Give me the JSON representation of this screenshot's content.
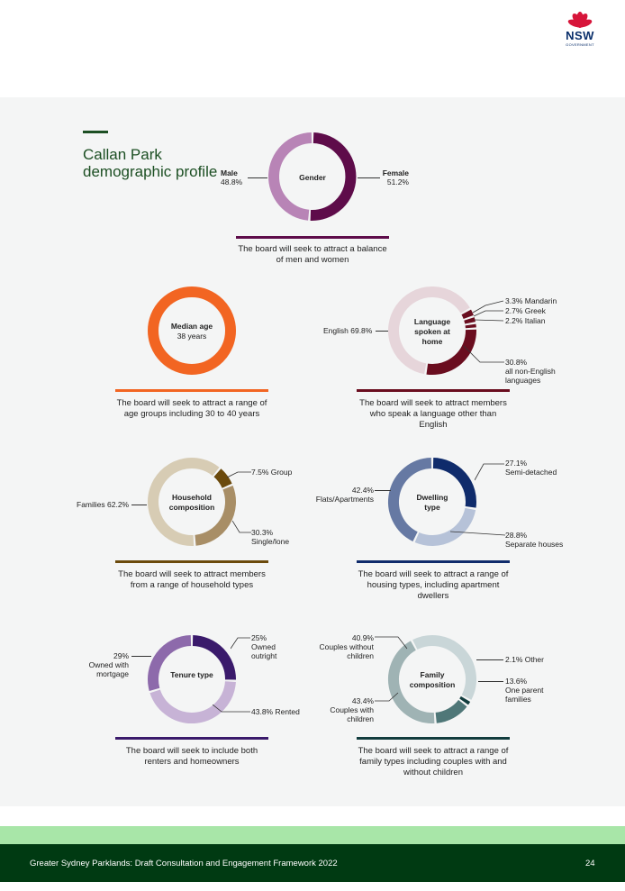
{
  "header": {
    "logo_text": "NSW",
    "logo_subtext": "GOVERNMENT"
  },
  "page": {
    "title": "Callan Park demographic profile"
  },
  "charts": {
    "gender": {
      "center": "Gender",
      "left_name": "Male",
      "left_value": "48.8%",
      "right_name": "Female",
      "right_value": "51.2%",
      "caption": "The board will seek to attract a balance of men and women",
      "colors": [
        "#5e0c4a",
        "#b884b6"
      ],
      "rule_color": "#5e0c4a"
    },
    "age": {
      "center_title": "Median age",
      "center_value": "38 years",
      "caption": "The board will seek to attract a range of age groups including 30 to 40 years",
      "color": "#f26522",
      "rule_color": "#f26522"
    },
    "language": {
      "center": "Language spoken at home",
      "english": "English 69.8%",
      "mandarin": "3.3% Mandarin",
      "greek": "2.7% Greek",
      "italian": "2.2% Italian",
      "non_english_value": "30.8%",
      "non_english_label": "all non-English languages",
      "caption": "The board will seek to attract members who speak a language other than English",
      "colors": [
        "#6a0d1f",
        "#e6d5da"
      ],
      "rule_color": "#6a0d1f"
    },
    "household": {
      "center": "Household composition",
      "group": "7.5% Group",
      "families": "Families 62.2%",
      "single_value": "30.3%",
      "single_label": "Single/lone",
      "caption": "The board will seek to attract members from a range of household types",
      "colors": [
        "#6b4a0c",
        "#a88e66",
        "#d7ccb4"
      ],
      "rule_color": "#6b4a0c"
    },
    "dwelling": {
      "center": "Dwelling type",
      "semi_value": "27.1%",
      "semi_label": "Semi-detached",
      "flats_value": "42.4%",
      "flats_label": "Flats/Apartments",
      "separate_value": "28.8%",
      "separate_label": "Separate houses",
      "caption": "The board will seek to attract a range of housing types, including apartment dwellers",
      "colors": [
        "#0f2b6b",
        "#b6c2d8",
        "#6679a3"
      ],
      "rule_color": "#0f2b6b"
    },
    "tenure": {
      "center": "Tenure type",
      "owned_value": "25%",
      "owned_label": "Owned outright",
      "rented": "43.8% Rented",
      "mortgage_value": "29%",
      "mortgage_label": "Owned with mortgage",
      "caption": "The board will seek to include both renters and homeowners",
      "colors": [
        "#3a1a6b",
        "#c7b3d6",
        "#8d6aab"
      ],
      "rule_color": "#3a1a6b"
    },
    "family": {
      "center": "Family composition",
      "without_value": "40.9%",
      "without_label": "Couples without children",
      "other": "2.1% Other",
      "one_parent_value": "13.6%",
      "one_parent_label": "One parent families",
      "with_value": "43.4%",
      "with_label": "Couples with children",
      "caption": "The board will seek to attract a range of family types including couples with and without children",
      "colors": [
        "#c9d6d8",
        "#123d3e",
        "#4f7778",
        "#9fb3b4"
      ],
      "rule_color": "#123d3e"
    }
  },
  "chart_data": [
    {
      "type": "pie",
      "categories": [
        "Female",
        "Male"
      ],
      "values": [
        51.2,
        48.8
      ]
    },
    {
      "type": "pie",
      "categories": [
        "Mandarin",
        "Greek",
        "Italian",
        "all non-English languages",
        "English"
      ],
      "values": [
        3.3,
        2.7,
        2.2,
        30.8,
        69.8
      ]
    },
    {
      "type": "pie",
      "categories": [
        "Group",
        "Single/lone",
        "Families"
      ],
      "values": [
        7.5,
        30.3,
        62.2
      ]
    },
    {
      "type": "pie",
      "categories": [
        "Semi-detached",
        "Separate houses",
        "Flats/Apartments"
      ],
      "values": [
        27.1,
        28.8,
        42.4
      ]
    },
    {
      "type": "pie",
      "categories": [
        "Owned outright",
        "Rented",
        "Owned with mortgage"
      ],
      "values": [
        25,
        43.8,
        29
      ]
    },
    {
      "type": "pie",
      "categories": [
        "Couples without children",
        "Other",
        "One parent families",
        "Couples with children"
      ],
      "values": [
        40.9,
        2.1,
        13.6,
        43.4
      ]
    }
  ],
  "footer": {
    "text": "Greater Sydney Parklands: Draft Consultation and Engagement Framework 2022",
    "page_number": "24"
  }
}
